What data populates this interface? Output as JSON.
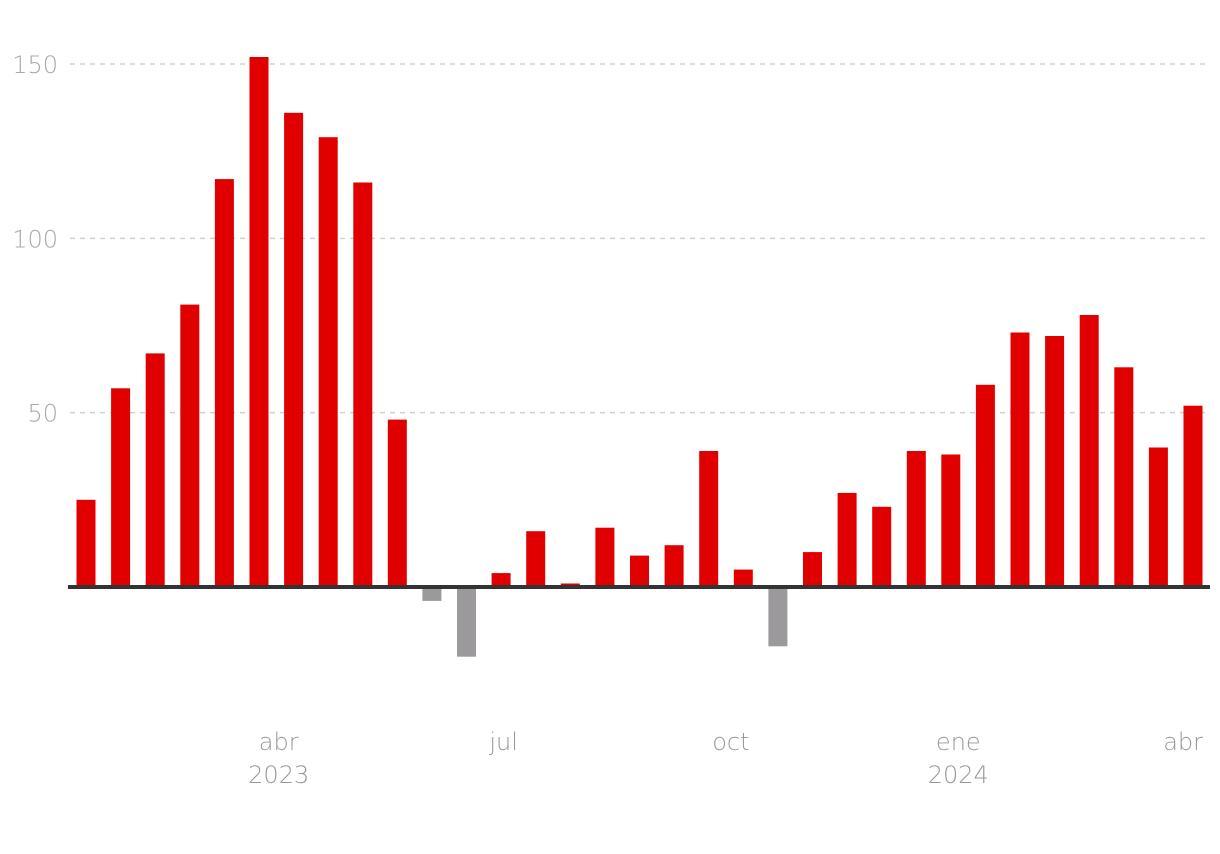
{
  "chart_data": {
    "type": "bar",
    "title": "",
    "xlabel": "",
    "ylabel": "",
    "ylim": [
      -30,
      150
    ],
    "y_ticks": [
      "50",
      "100",
      "150"
    ],
    "grid": true,
    "x_tick_labels": [
      {
        "month": "abr",
        "year": "2023",
        "at": "2023-04"
      },
      {
        "month": "jul",
        "year": "",
        "at": "2023-07"
      },
      {
        "month": "oct",
        "year": "",
        "at": "2023-10"
      },
      {
        "month": "ene",
        "year": "2024",
        "at": "2024-01"
      },
      {
        "month": "abr",
        "year": "",
        "at": "2024-04"
      }
    ],
    "series": [
      {
        "points": [
          {
            "date": "2023-01-13",
            "value": 25
          },
          {
            "date": "2023-01-27",
            "value": 57
          },
          {
            "date": "2023-02-10",
            "value": 67
          },
          {
            "date": "2023-02-24",
            "value": 81
          },
          {
            "date": "2023-03-10",
            "value": 117
          },
          {
            "date": "2023-03-24",
            "value": 152
          },
          {
            "date": "2023-04-07",
            "value": 136
          },
          {
            "date": "2023-04-21",
            "value": 129
          },
          {
            "date": "2023-05-05",
            "value": 116
          },
          {
            "date": "2023-05-19",
            "value": 48
          },
          {
            "date": "2023-06-02",
            "value": -4
          },
          {
            "date": "2023-06-16",
            "value": -20
          },
          {
            "date": "2023-06-30",
            "value": 4
          },
          {
            "date": "2023-07-14",
            "value": 16
          },
          {
            "date": "2023-07-28",
            "value": 1
          },
          {
            "date": "2023-08-11",
            "value": 17
          },
          {
            "date": "2023-08-25",
            "value": 9
          },
          {
            "date": "2023-09-08",
            "value": 12
          },
          {
            "date": "2023-09-22",
            "value": 39
          },
          {
            "date": "2023-10-06",
            "value": 5
          },
          {
            "date": "2023-10-20",
            "value": -17
          },
          {
            "date": "2023-11-03",
            "value": 10
          },
          {
            "date": "2023-11-17",
            "value": 27
          },
          {
            "date": "2023-12-01",
            "value": 23
          },
          {
            "date": "2023-12-15",
            "value": 39
          },
          {
            "date": "2023-12-29",
            "value": 38
          },
          {
            "date": "2024-01-12",
            "value": 58
          },
          {
            "date": "2024-01-26",
            "value": 73
          },
          {
            "date": "2024-02-09",
            "value": 72
          },
          {
            "date": "2024-02-23",
            "value": 78
          },
          {
            "date": "2024-03-08",
            "value": 63
          },
          {
            "date": "2024-03-22",
            "value": 40
          },
          {
            "date": "2024-04-05",
            "value": 52
          }
        ]
      }
    ],
    "colors": {
      "positive": "#e00000",
      "negative": "#9b999c",
      "baseline": "#333333",
      "grid": "#d0d0d0",
      "tick_text": "#a9a9a9"
    }
  }
}
